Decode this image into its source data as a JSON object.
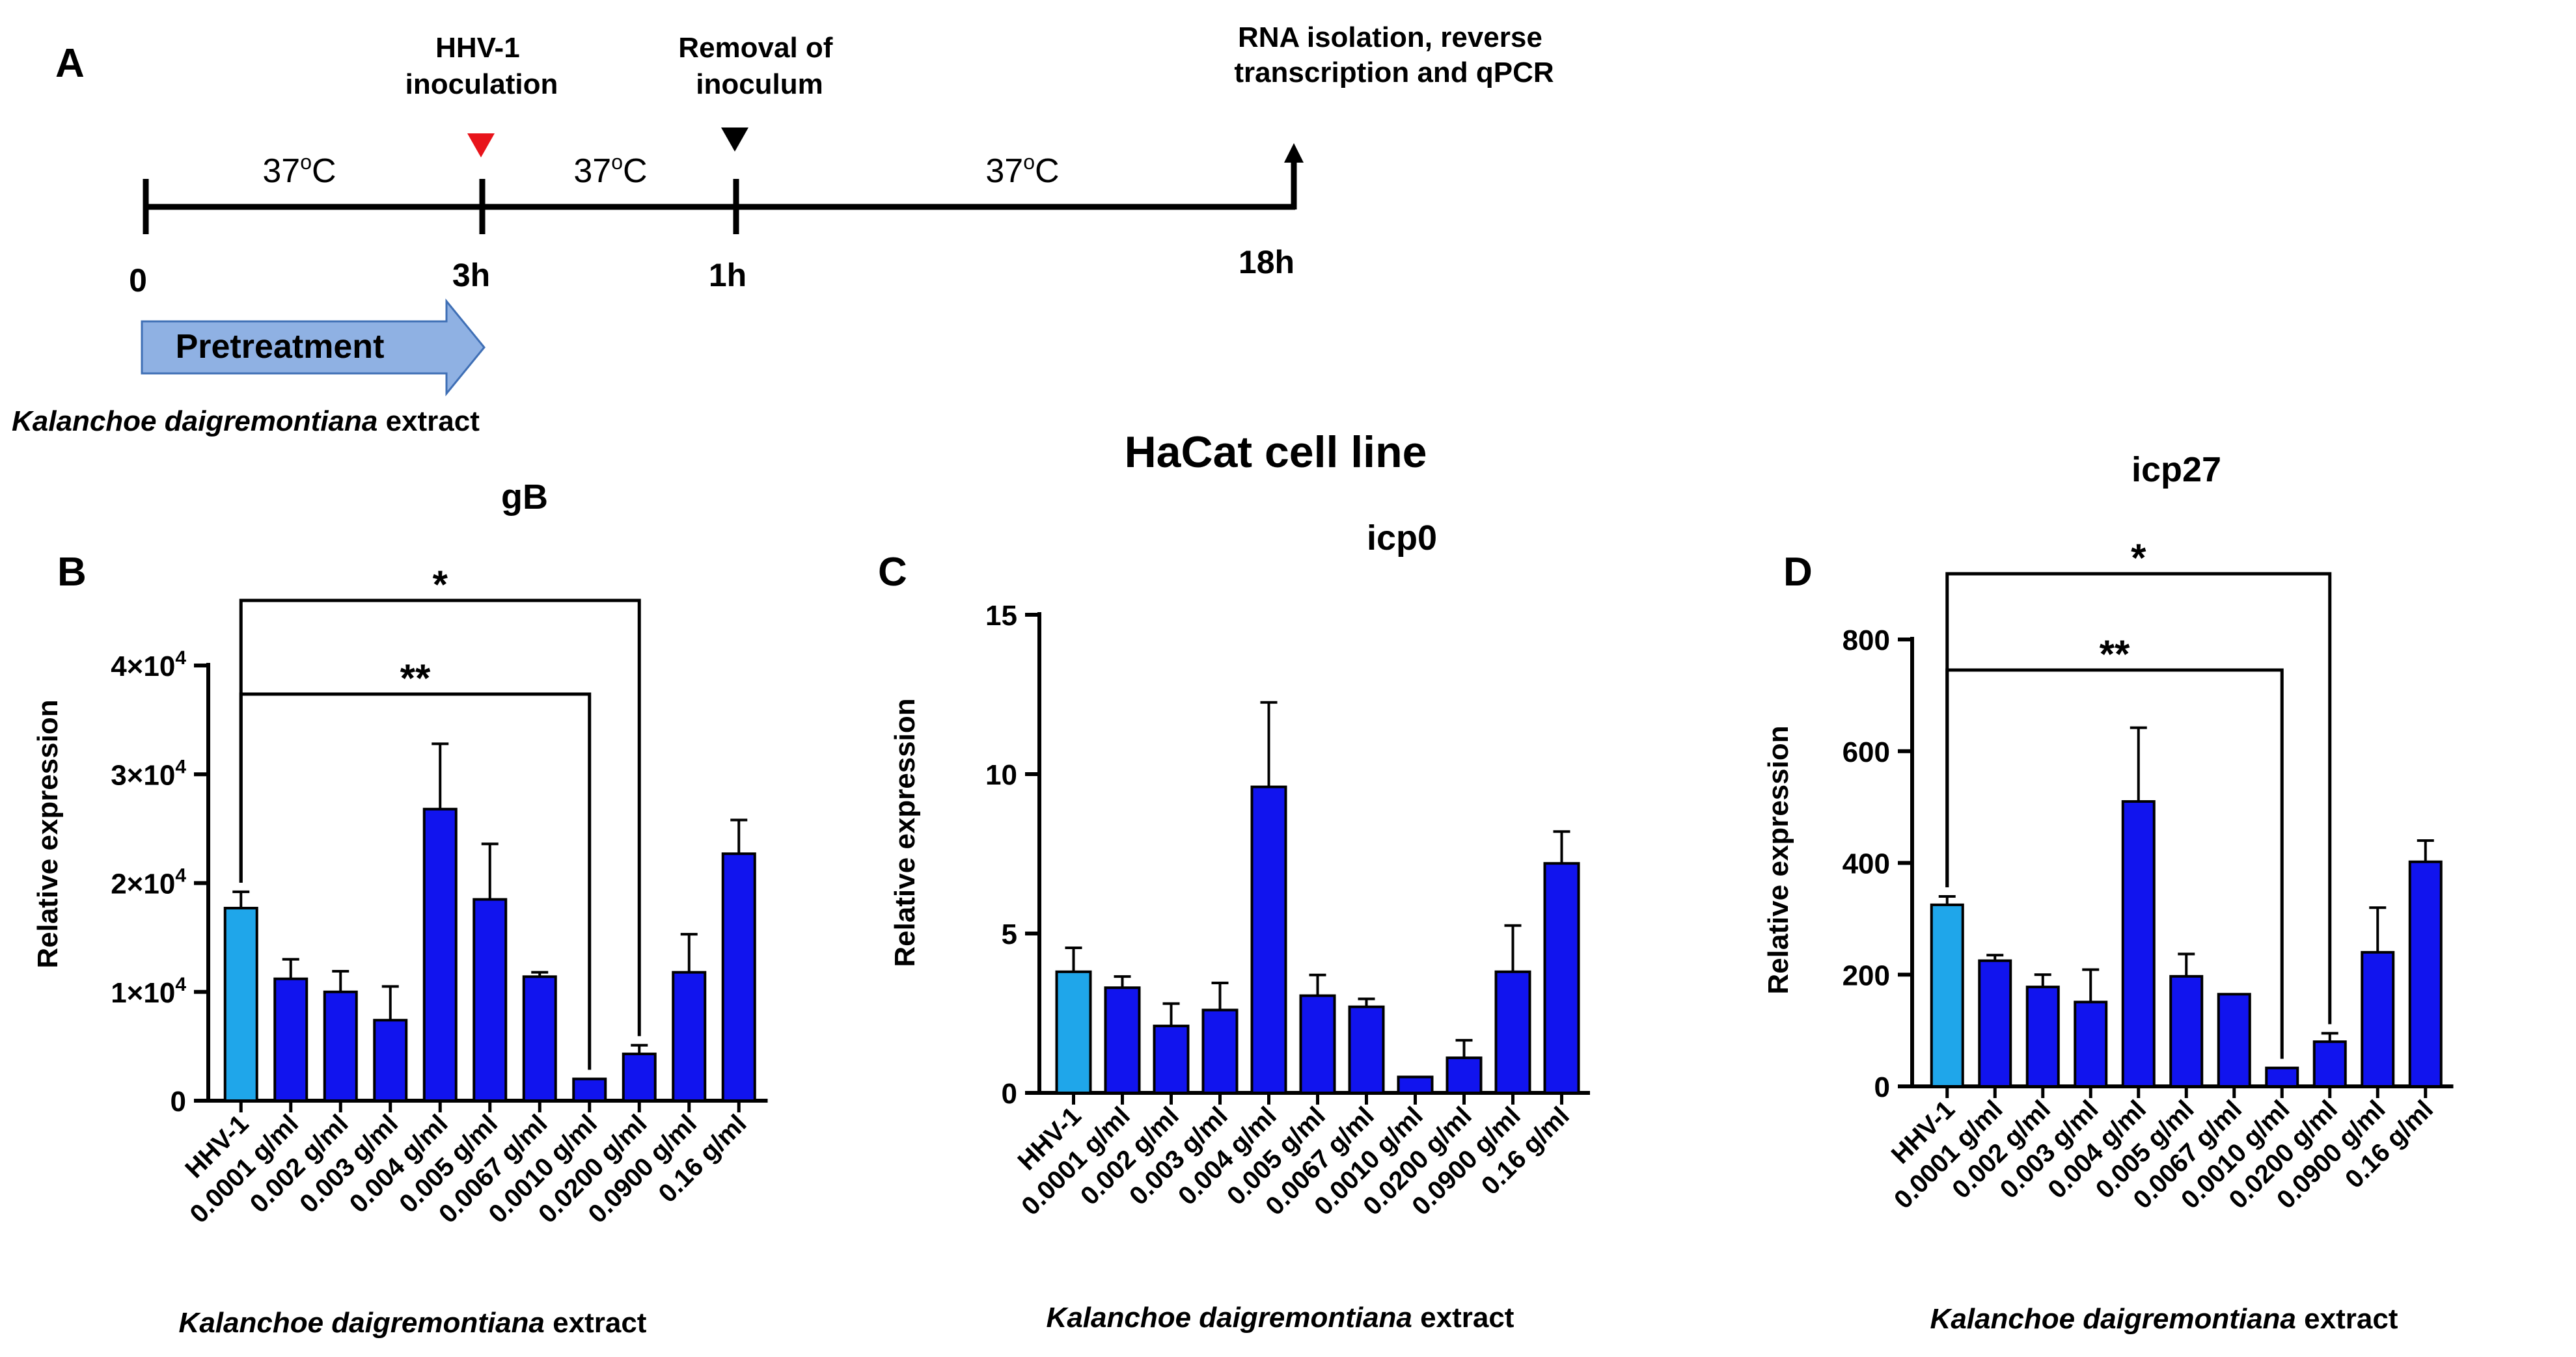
{
  "panel_labels": {
    "a": "A",
    "b": "B",
    "c": "C",
    "d": "D"
  },
  "timeline": {
    "event_inoculation": [
      "HHV-1",
      "inoculation"
    ],
    "event_removal": [
      "Removal of",
      "inoculum"
    ],
    "event_final": [
      "RNA isolation, reverse",
      "transcription and qPCR"
    ],
    "temperature": [
      "37",
      "o",
      "C"
    ],
    "time_0": "0",
    "time_1": "3h",
    "time_2": "1h",
    "time_3": "18h",
    "pretreatment_label": "Pretreatment",
    "extract_italic": "Kalanchoe daigremontiana",
    "extract_plain": " extract",
    "colors": {
      "red_marker": "#e8141b",
      "black_marker": "#000000",
      "arrow_fill": "#8fb1e3",
      "arrow_stroke": "#3f6fb5"
    }
  },
  "overall_title": "HaCat cell line",
  "x_axis_italic": "Kalanchoe daigremontiana",
  "x_axis_plain": " extract",
  "bar_colors": {
    "control": "#1fa6ea",
    "treated": "#1114ee"
  },
  "chart_data": [
    {
      "type": "bar",
      "title": "gB",
      "panel": "B",
      "ylabel": "Relative expression",
      "xlabel": "Kalanchoe daigremontiana extract",
      "ylim": [
        0,
        40000
      ],
      "yticks": [
        {
          "v": 0,
          "label": "0"
        },
        {
          "v": 10000,
          "base": "1×10",
          "exp": "4"
        },
        {
          "v": 20000,
          "base": "2×10",
          "exp": "4"
        },
        {
          "v": 30000,
          "base": "3×10",
          "exp": "4"
        },
        {
          "v": 40000,
          "base": "4×10",
          "exp": "4"
        }
      ],
      "categories": [
        "HHV-1",
        "0.0001 g/ml",
        "0.002 g/ml",
        "0.003 g/ml",
        "0.004 g/ml",
        "0.005 g/ml",
        "0.0067 g/ml",
        "0.0010 g/ml",
        "0.0200 g/ml",
        "0.0900 g/ml",
        "0.16 g/ml"
      ],
      "values": [
        17700,
        11200,
        10000,
        7400,
        26800,
        18500,
        11400,
        2000,
        4300,
        11800,
        22700
      ],
      "errors": [
        1500,
        1800,
        1900,
        3100,
        6000,
        5100,
        400,
        0,
        800,
        3500,
        3100
      ],
      "significance": [
        {
          "from": 0,
          "to": 8,
          "label": "*",
          "level": 0
        },
        {
          "from": 0,
          "to": 7,
          "label": "**",
          "level": 1
        }
      ]
    },
    {
      "type": "bar",
      "title": "icp0",
      "panel": "C",
      "ylabel": "Relative expression",
      "xlabel": "Kalanchoe daigremontiana extract",
      "ylim": [
        0,
        15
      ],
      "yticks": [
        {
          "v": 0,
          "label": "0"
        },
        {
          "v": 5,
          "label": "5"
        },
        {
          "v": 10,
          "label": "10"
        },
        {
          "v": 15,
          "label": "15"
        }
      ],
      "categories": [
        "HHV-1",
        "0.0001 g/ml",
        "0.002 g/ml",
        "0.003 g/ml",
        "0.004 g/ml",
        "0.005 g/ml",
        "0.0067 g/ml",
        "0.0010 g/ml",
        "0.0200 g/ml",
        "0.0900 g/ml",
        "0.16 g/ml"
      ],
      "values": [
        3.8,
        3.3,
        2.1,
        2.6,
        9.6,
        3.05,
        2.7,
        0.5,
        1.1,
        3.8,
        7.2
      ],
      "errors": [
        0.75,
        0.35,
        0.7,
        0.85,
        2.65,
        0.65,
        0.25,
        0,
        0.55,
        1.45,
        1.0
      ],
      "significance": []
    },
    {
      "type": "bar",
      "title": "icp27",
      "panel": "D",
      "ylabel": "Relative expression",
      "xlabel": "Kalanchoe daigremontiana extract",
      "ylim": [
        0,
        800
      ],
      "yticks": [
        {
          "v": 0,
          "label": "0"
        },
        {
          "v": 200,
          "label": "200"
        },
        {
          "v": 400,
          "label": "400"
        },
        {
          "v": 600,
          "label": "600"
        },
        {
          "v": 800,
          "label": "800"
        }
      ],
      "categories": [
        "HHV-1",
        "0.0001 g/ml",
        "0.002 g/ml",
        "0.003 g/ml",
        "0.004 g/ml",
        "0.005 g/ml",
        "0.0067 g/ml",
        "0.0010 g/ml",
        "0.0200 g/ml",
        "0.0900 g/ml",
        "0.16 g/ml"
      ],
      "values": [
        325,
        225,
        178,
        151,
        510,
        197,
        165,
        33,
        80,
        240,
        402
      ],
      "errors": [
        15,
        10,
        22,
        58,
        132,
        40,
        0,
        0,
        15,
        80,
        38
      ],
      "significance": [
        {
          "from": 0,
          "to": 8,
          "label": "*",
          "level": 0
        },
        {
          "from": 0,
          "to": 7,
          "label": "**",
          "level": 1
        }
      ]
    }
  ]
}
